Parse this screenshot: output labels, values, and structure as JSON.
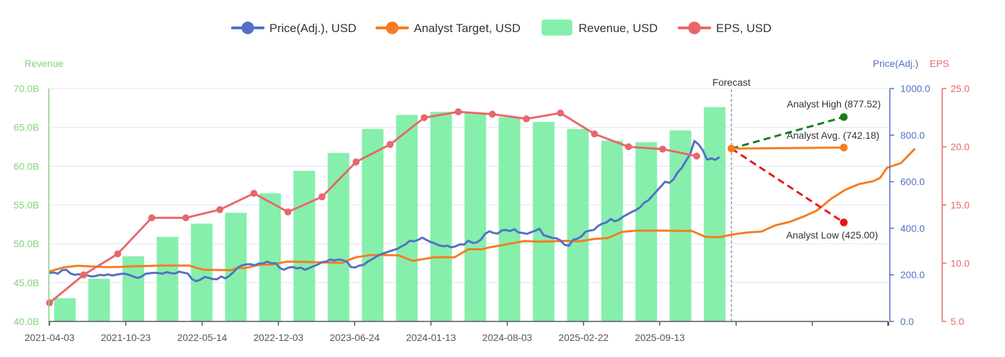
{
  "chart_data": {
    "type": "bar",
    "legend": [
      {
        "label": "Price(Adj.), USD",
        "color": "#5470c6"
      },
      {
        "label": "Analyst Target, USD",
        "color": "#f57c1f"
      },
      {
        "label": "Revenue, USD",
        "color": "#86efac"
      },
      {
        "label": "EPS, USD",
        "color": "#e8676b"
      }
    ],
    "axes": {
      "left": {
        "title": "Revenue",
        "color": "#86d17d",
        "min": 40,
        "max": 70,
        "ticks": [
          "40.0B",
          "45.0B",
          "50.0B",
          "55.0B",
          "60.0B",
          "65.0B",
          "70.0B"
        ]
      },
      "right1": {
        "title": "Price(Adj.)",
        "color": "#5470c6",
        "min": 0,
        "max": 1000,
        "ticks": [
          "0.0",
          "200.0",
          "400.0",
          "600.0",
          "800.0",
          "1000.0"
        ]
      },
      "right2": {
        "title": "EPS",
        "color": "#e8676b",
        "min": 5,
        "max": 25,
        "ticks": [
          "5.0",
          "10.0",
          "15.0",
          "20.0",
          "25.0"
        ]
      },
      "x": {
        "labels": [
          "2021-04-03",
          "2021-10-23",
          "2022-05-14",
          "2022-12-03",
          "2023-06-24",
          "2024-01-13",
          "2024-08-03",
          "2025-02-22",
          "2025-09-13"
        ]
      }
    },
    "revenue": [
      43.0,
      45.5,
      48.4,
      50.9,
      52.6,
      54.0,
      56.5,
      59.4,
      61.7,
      64.8,
      66.6,
      67.0,
      66.9,
      66.3,
      65.7,
      64.8,
      63.3,
      63.1,
      64.6,
      67.6
    ],
    "eps": [
      6.6,
      9.0,
      10.8,
      13.9,
      13.9,
      14.6,
      16.0,
      14.4,
      15.7,
      18.7,
      20.2,
      22.5,
      23.0,
      22.8,
      22.4,
      22.9,
      21.1,
      20.0,
      19.8,
      19.2
    ],
    "price": [
      [
        0,
        208
      ],
      [
        3,
        210
      ],
      [
        6,
        205
      ],
      [
        9,
        220
      ],
      [
        12,
        222
      ],
      [
        15,
        206
      ],
      [
        18,
        200
      ],
      [
        21,
        203
      ],
      [
        24,
        196
      ],
      [
        27,
        198
      ],
      [
        30,
        193
      ],
      [
        33,
        195
      ],
      [
        36,
        200
      ],
      [
        39,
        198
      ],
      [
        42,
        202
      ],
      [
        45,
        197
      ],
      [
        48,
        201
      ],
      [
        51,
        204
      ],
      [
        54,
        205
      ],
      [
        57,
        200
      ],
      [
        60,
        193
      ],
      [
        63,
        187
      ],
      [
        66,
        193
      ],
      [
        69,
        205
      ],
      [
        72,
        207
      ],
      [
        75,
        209
      ],
      [
        78,
        208
      ],
      [
        81,
        205
      ],
      [
        84,
        212
      ],
      [
        87,
        207
      ],
      [
        90,
        206
      ],
      [
        93,
        214
      ],
      [
        96,
        209
      ],
      [
        99,
        206
      ],
      [
        102,
        182
      ],
      [
        105,
        173
      ],
      [
        108,
        179
      ],
      [
        111,
        191
      ],
      [
        114,
        187
      ],
      [
        117,
        182
      ],
      [
        120,
        181
      ],
      [
        123,
        193
      ],
      [
        126,
        185
      ],
      [
        129,
        197
      ],
      [
        132,
        213
      ],
      [
        135,
        232
      ],
      [
        138,
        241
      ],
      [
        141,
        245
      ],
      [
        144,
        246
      ],
      [
        147,
        241
      ],
      [
        150,
        249
      ],
      [
        153,
        249
      ],
      [
        156,
        257
      ],
      [
        159,
        250
      ],
      [
        162,
        250
      ],
      [
        165,
        229
      ],
      [
        168,
        222
      ],
      [
        171,
        231
      ],
      [
        174,
        234
      ],
      [
        177,
        228
      ],
      [
        180,
        231
      ],
      [
        183,
        222
      ],
      [
        186,
        229
      ],
      [
        189,
        237
      ],
      [
        192,
        244
      ],
      [
        195,
        254
      ],
      [
        198,
        257
      ],
      [
        201,
        266
      ],
      [
        204,
        262
      ],
      [
        207,
        266
      ],
      [
        210,
        263
      ],
      [
        213,
        257
      ],
      [
        216,
        233
      ],
      [
        219,
        232
      ],
      [
        222,
        240
      ],
      [
        225,
        243
      ],
      [
        228,
        257
      ],
      [
        231,
        267
      ],
      [
        234,
        278
      ],
      [
        237,
        288
      ],
      [
        240,
        294
      ],
      [
        243,
        300
      ],
      [
        246,
        306
      ],
      [
        249,
        311
      ],
      [
        252,
        322
      ],
      [
        255,
        331
      ],
      [
        258,
        346
      ],
      [
        261,
        344
      ],
      [
        264,
        350
      ],
      [
        267,
        360
      ],
      [
        270,
        350
      ],
      [
        273,
        341
      ],
      [
        276,
        335
      ],
      [
        279,
        327
      ],
      [
        282,
        323
      ],
      [
        285,
        325
      ],
      [
        288,
        318
      ],
      [
        291,
        323
      ],
      [
        294,
        331
      ],
      [
        297,
        330
      ],
      [
        300,
        347
      ],
      [
        303,
        337
      ],
      [
        306,
        339
      ],
      [
        309,
        351
      ],
      [
        312,
        376
      ],
      [
        315,
        387
      ],
      [
        318,
        380
      ],
      [
        321,
        377
      ],
      [
        324,
        391
      ],
      [
        327,
        393
      ],
      [
        330,
        388
      ],
      [
        333,
        396
      ],
      [
        336,
        382
      ],
      [
        339,
        380
      ],
      [
        342,
        376
      ],
      [
        345,
        383
      ],
      [
        348,
        390
      ],
      [
        351,
        398
      ],
      [
        354,
        370
      ],
      [
        357,
        365
      ],
      [
        360,
        359
      ],
      [
        363,
        357
      ],
      [
        366,
        348
      ],
      [
        369,
        329
      ],
      [
        372,
        325
      ],
      [
        375,
        350
      ],
      [
        378,
        355
      ],
      [
        381,
        365
      ],
      [
        384,
        385
      ],
      [
        387,
        390
      ],
      [
        390,
        393
      ],
      [
        393,
        410
      ],
      [
        396,
        420
      ],
      [
        399,
        425
      ],
      [
        402,
        440
      ],
      [
        405,
        430
      ],
      [
        408,
        437
      ],
      [
        411,
        450
      ],
      [
        414,
        460
      ],
      [
        417,
        470
      ],
      [
        420,
        478
      ],
      [
        423,
        490
      ],
      [
        426,
        510
      ],
      [
        429,
        520
      ],
      [
        432,
        540
      ],
      [
        435,
        560
      ],
      [
        438,
        580
      ],
      [
        441,
        600
      ],
      [
        444,
        595
      ],
      [
        447,
        610
      ],
      [
        450,
        640
      ],
      [
        453,
        660
      ],
      [
        456,
        690
      ],
      [
        459,
        720
      ],
      [
        462,
        775
      ],
      [
        465,
        760
      ],
      [
        468,
        735
      ],
      [
        471,
        695
      ],
      [
        474,
        700
      ],
      [
        477,
        694
      ],
      [
        480,
        706
      ]
    ],
    "target": [
      [
        0,
        215
      ],
      [
        10,
        232
      ],
      [
        20,
        239
      ],
      [
        30,
        236
      ],
      [
        40,
        233
      ],
      [
        50,
        234
      ],
      [
        60,
        237
      ],
      [
        70,
        238
      ],
      [
        80,
        240
      ],
      [
        90,
        240
      ],
      [
        100,
        240
      ],
      [
        110,
        222
      ],
      [
        120,
        221
      ],
      [
        130,
        220
      ],
      [
        135,
        230
      ],
      [
        140,
        229
      ],
      [
        150,
        243
      ],
      [
        160,
        245
      ],
      [
        170,
        257
      ],
      [
        180,
        256
      ],
      [
        190,
        254
      ],
      [
        200,
        253
      ],
      [
        210,
        251
      ],
      [
        215,
        266
      ],
      [
        220,
        276
      ],
      [
        230,
        285
      ],
      [
        240,
        285
      ],
      [
        250,
        284
      ],
      [
        260,
        260
      ],
      [
        270,
        270
      ],
      [
        275,
        275
      ],
      [
        280,
        276
      ],
      [
        290,
        275
      ],
      [
        300,
        310
      ],
      [
        310,
        310
      ],
      [
        315,
        318
      ],
      [
        320,
        323
      ],
      [
        330,
        334
      ],
      [
        340,
        345
      ],
      [
        350,
        343
      ],
      [
        360,
        344
      ],
      [
        370,
        346
      ],
      [
        380,
        344
      ],
      [
        390,
        354
      ],
      [
        400,
        358
      ],
      [
        410,
        384
      ],
      [
        420,
        390
      ],
      [
        430,
        390
      ],
      [
        440,
        390
      ],
      [
        450,
        389
      ],
      [
        460,
        389
      ],
      [
        470,
        363
      ],
      [
        480,
        362
      ],
      [
        490,
        374
      ],
      [
        500,
        382
      ],
      [
        510,
        386
      ],
      [
        520,
        413
      ],
      [
        530,
        427
      ],
      [
        540,
        450
      ],
      [
        550,
        477
      ],
      [
        560,
        527
      ],
      [
        570,
        565
      ],
      [
        580,
        590
      ],
      [
        590,
        602
      ],
      [
        595,
        616
      ],
      [
        600,
        660
      ],
      [
        610,
        680
      ],
      [
        620,
        742
      ]
    ],
    "forecast": {
      "label": "Forecast",
      "current": 742.18,
      "high": {
        "label": "Analyst High (877.52)",
        "value": 877.52,
        "color": "#168016"
      },
      "avg": {
        "label": "Analyst Avg. (742.18)",
        "value": 742.18,
        "color": "#f57c1f"
      },
      "low": {
        "label": "Analyst Low (425.00)",
        "value": 425.0,
        "color": "#e81818"
      }
    }
  }
}
